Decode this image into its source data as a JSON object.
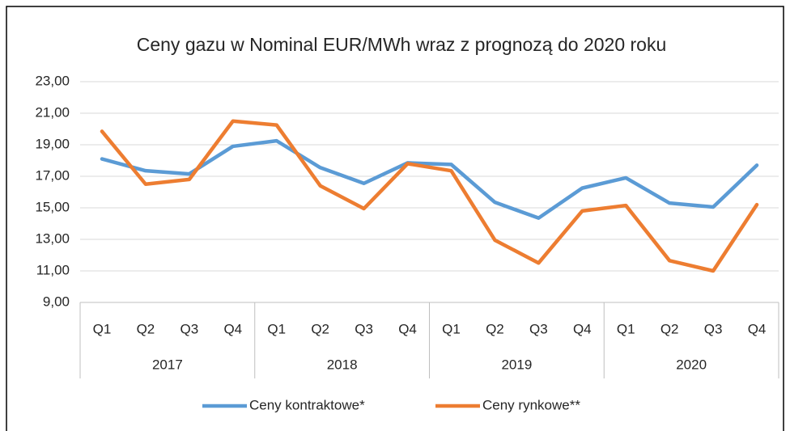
{
  "chart_data": {
    "type": "line",
    "title": "Ceny gazu w Nominal EUR/MWh wraz z prognozą do 2020 roku",
    "categories": [
      "Q1",
      "Q2",
      "Q3",
      "Q4",
      "Q1",
      "Q2",
      "Q3",
      "Q4",
      "Q1",
      "Q2",
      "Q3",
      "Q4",
      "Q1",
      "Q2",
      "Q3",
      "Q4"
    ],
    "category_groups": [
      "2017",
      "2018",
      "2019",
      "2020"
    ],
    "series": [
      {
        "name": "Ceny kontraktowe*",
        "color": "#5b9bd5",
        "values": [
          18.1,
          17.35,
          17.15,
          18.9,
          19.25,
          17.55,
          16.55,
          17.85,
          17.75,
          15.35,
          14.35,
          16.25,
          16.9,
          15.3,
          15.05,
          17.7
        ]
      },
      {
        "name": "Ceny rynkowe**",
        "color": "#ed7d31",
        "values": [
          19.85,
          16.5,
          16.8,
          20.5,
          20.25,
          16.4,
          14.95,
          17.8,
          17.35,
          12.95,
          11.5,
          14.8,
          15.15,
          11.65,
          11.0,
          15.2
        ]
      }
    ],
    "ylim": [
      9,
      23
    ],
    "yticks": [
      {
        "value": 9,
        "label": "9,00"
      },
      {
        "value": 11,
        "label": "11,00"
      },
      {
        "value": 13,
        "label": "13,00"
      },
      {
        "value": 15,
        "label": "15,00"
      },
      {
        "value": 17,
        "label": "17,00"
      },
      {
        "value": 19,
        "label": "19,00"
      },
      {
        "value": 21,
        "label": "21,00"
      },
      {
        "value": 23,
        "label": "23,00"
      }
    ],
    "grid": true,
    "legend": "bottom"
  }
}
